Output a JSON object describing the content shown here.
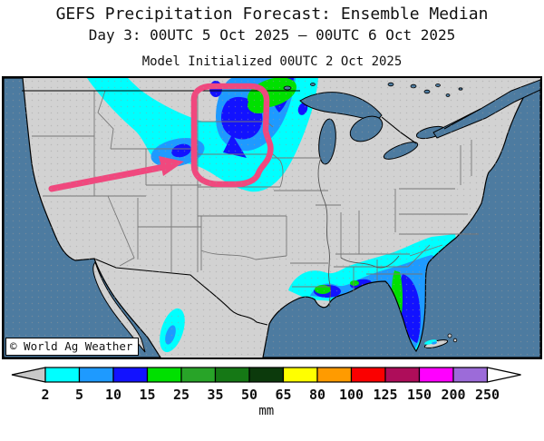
{
  "header": {
    "title": "GEFS Precipitation Forecast: Ensemble Median",
    "subtitle": "Day 3: 00UTC 5 Oct 2025 — 00UTC 6 Oct 2025",
    "init_line": "Model Initialized 00UTC 2 Oct 2025"
  },
  "map": {
    "watermark": "© World Ag Weather",
    "colors": {
      "land": "#D2D2D2",
      "ocean": "#4D7BA0",
      "coast": "#000000",
      "state_line": "#777777",
      "annotation": "#F0487E"
    }
  },
  "colorbar": {
    "unit": "mm",
    "levels": [
      "2",
      "5",
      "10",
      "15",
      "25",
      "35",
      "50",
      "65",
      "80",
      "100",
      "125",
      "150",
      "200",
      "250"
    ],
    "colors": [
      "#00FFFF",
      "#1E9AFF",
      "#1212FF",
      "#00E000",
      "#28A428",
      "#157815",
      "#0C3A0C",
      "#FFFF00",
      "#FF9B00",
      "#FA0000",
      "#AE0D5A",
      "#FF00FF",
      "#9C6BD9"
    ],
    "left_arrow_color": "#C8C8C8",
    "right_arrow_color": "#FFFFFF"
  }
}
